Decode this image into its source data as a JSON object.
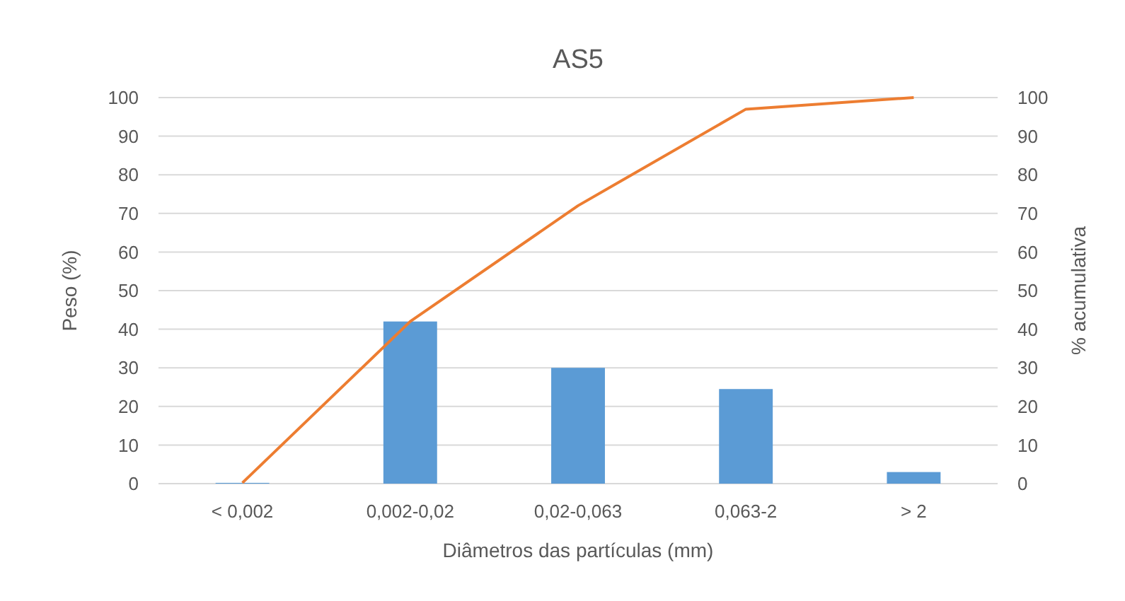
{
  "chart_data": {
    "type": "bar",
    "title": "AS5",
    "xlabel": "Diâmetros das partículas (mm)",
    "ylabel": "Peso (%)",
    "y2label": "% acumulativa",
    "categories": [
      "< 0,002",
      "0,002-0,02",
      "0,02-0,063",
      "0,063-2",
      "> 2"
    ],
    "series": [
      {
        "color": "#5b9bd5",
        "values": [
          0.2,
          42,
          30,
          24.5,
          3
        ]
      },
      {
        "type": "line",
        "axis": "y2",
        "color": "#ed7d31",
        "values": [
          0.2,
          42,
          72,
          97,
          100
        ]
      }
    ],
    "ylim": [
      0,
      100
    ],
    "yticks": [
      0,
      10,
      20,
      30,
      40,
      50,
      60,
      70,
      80,
      90,
      100
    ],
    "y2lim": [
      0,
      100
    ],
    "y2ticks": [
      0,
      10,
      20,
      30,
      40,
      50,
      60,
      70,
      80,
      90,
      100
    ],
    "grid": "y"
  }
}
